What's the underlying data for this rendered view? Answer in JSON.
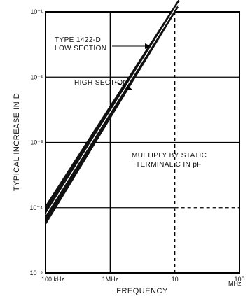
{
  "chart_data": {
    "type": "line",
    "xlabel": "FREQUENCY",
    "ylabel": "TYPICAL INCREASE IN D",
    "x_scale": "log",
    "y_scale": "log",
    "x_ticks": [
      {
        "value": 100000,
        "label": "100 kHz"
      },
      {
        "value": 1000000,
        "label": "1MHz"
      },
      {
        "value": 10000000,
        "label": "10"
      },
      {
        "value": 100000000,
        "label": "100"
      }
    ],
    "x_unit_label": "MHz",
    "y_ticks": [
      {
        "value": 1e-05,
        "label": "10⁻⁵"
      },
      {
        "value": 0.0001,
        "label": "10⁻⁴"
      },
      {
        "value": 0.001,
        "label": "10⁻³"
      },
      {
        "value": 0.01,
        "label": "10⁻²"
      },
      {
        "value": 0.1,
        "label": "10⁻¹"
      }
    ],
    "xlim": [
      100000,
      100000000
    ],
    "ylim": [
      1e-05,
      0.1
    ],
    "grid": true,
    "series": [
      {
        "name": "TYPE 1422-D LOW SECTION",
        "x": [
          100000,
          10000000
        ],
        "y": [
          7e-05,
          0.12
        ]
      },
      {
        "name": "HIGH SECTION",
        "x": [
          100000,
          10000000
        ],
        "y": [
          9e-05,
          0.15
        ]
      }
    ],
    "annotations": [
      {
        "text": "TYPE 1422-D",
        "line": 1
      },
      {
        "text": "LOW SECTION",
        "line": 2
      },
      {
        "text": "HIGH SECTION",
        "line": 3
      },
      {
        "text": "MULTIPLY BY STATIC",
        "line": 4
      },
      {
        "text": "TERMINAL C IN pF",
        "line": 5
      }
    ]
  }
}
